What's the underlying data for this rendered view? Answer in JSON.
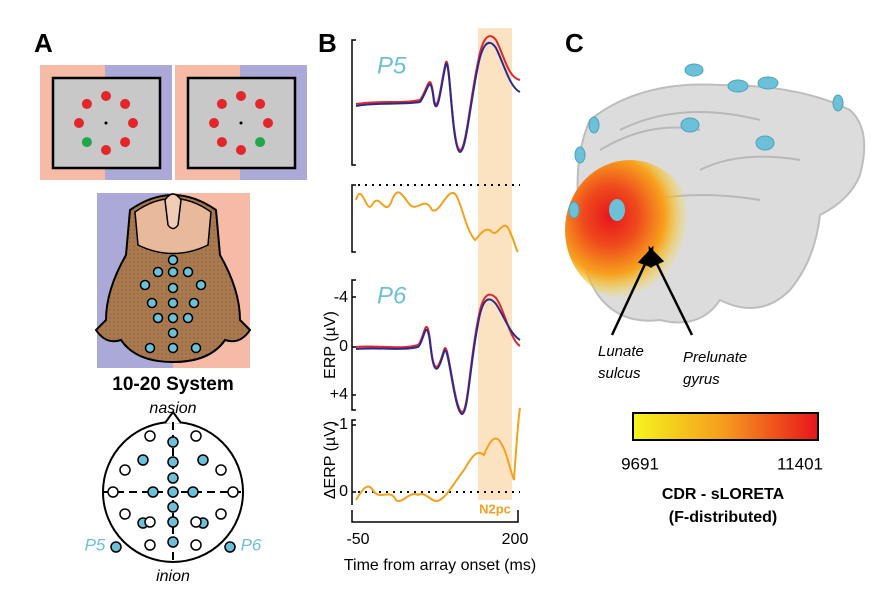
{
  "panel_a": {
    "label": "A",
    "system_title": "10-20 System",
    "nasion": "nasion",
    "inion": "inion",
    "p5": "P5",
    "p6": "P6"
  },
  "panel_b": {
    "label": "B",
    "p5": "P5",
    "p6": "P6",
    "erp_axis": "ERP (µV)",
    "diff_axis": "ΔERP (µV)",
    "erp_ticks": [
      "-4",
      "0",
      "+4"
    ],
    "diff_ticks": [
      "-1",
      "0"
    ],
    "x_ticks": [
      "-50",
      "200"
    ],
    "x_label": "Time from array onset (ms)",
    "window": "N2pc"
  },
  "panel_c": {
    "label": "C",
    "lunate": [
      "Lunate",
      "sulcus"
    ],
    "prelunate": [
      "Prelunate",
      "gyrus"
    ],
    "colorbar_min": "9691",
    "colorbar_max": "11401",
    "caption": [
      "CDR - sLORETA",
      "(F-distributed)"
    ]
  }
}
